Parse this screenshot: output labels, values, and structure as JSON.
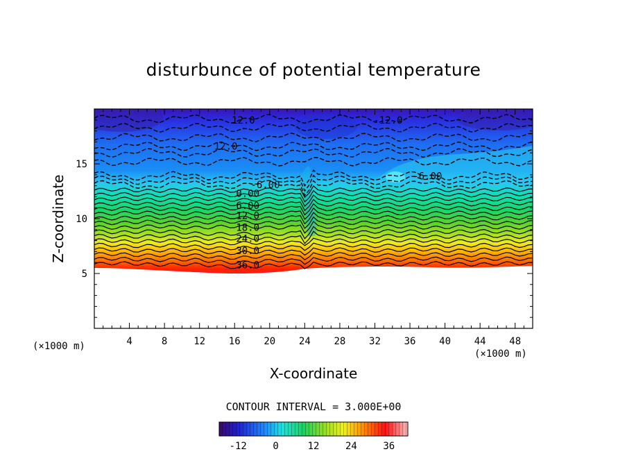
{
  "chart_data": {
    "type": "heatmap",
    "title": "disturbunce of potential temperature",
    "xlabel": "X-coordinate",
    "ylabel": "Z-coordinate",
    "x_unit": "(×1000 m)",
    "y_unit": "(×1000 m)",
    "xlim": [
      0,
      50
    ],
    "ylim": [
      0,
      20
    ],
    "x_ticks": [
      "4",
      "8",
      "12",
      "16",
      "20",
      "24",
      "28",
      "32",
      "36",
      "40",
      "44",
      "48"
    ],
    "y_ticks": [
      "5",
      "10",
      "15"
    ],
    "contour_interval_text": "CONTOUR INTERVAL = 3.000E+00",
    "contour_labels": [
      {
        "text": "12.0",
        "x": 17,
        "z": 19.0
      },
      {
        "text": "12.0",
        "x": 15,
        "z": 16.6
      },
      {
        "text": "-12.0",
        "x": 33.5,
        "z": 19.0
      },
      {
        "text": "-6.00",
        "x": 38,
        "z": 13.9
      },
      {
        "text": "-6.00",
        "x": 19.5,
        "z": 13.1
      },
      {
        "text": "0.00",
        "x": 17.5,
        "z": 12.3
      },
      {
        "text": "6.00",
        "x": 17.5,
        "z": 11.2
      },
      {
        "text": "12.0",
        "x": 17.5,
        "z": 10.3
      },
      {
        "text": "18.0",
        "x": 17.5,
        "z": 9.2
      },
      {
        "text": "24.0",
        "x": 17.5,
        "z": 8.2
      },
      {
        "text": "30.0",
        "x": 17.5,
        "z": 7.1
      },
      {
        "text": "36.0",
        "x": 17.5,
        "z": 5.8
      }
    ],
    "colorbar": {
      "min": -18,
      "max": 42,
      "ticks": [
        "-12",
        "0",
        "12",
        "24",
        "36"
      ]
    },
    "grid": false
  }
}
